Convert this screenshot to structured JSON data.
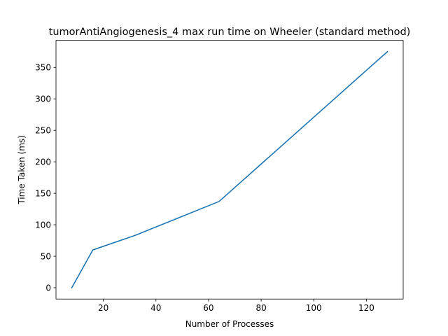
{
  "chart_data": {
    "type": "line",
    "title": "tumorAntiAngiogenesis_4 max run time on Wheeler (standard method)",
    "xlabel": "Number of Processes",
    "ylabel": "Time Taken (ms)",
    "xlim": [
      2,
      134
    ],
    "ylim": [
      -18,
      393
    ],
    "xticks": [
      20,
      40,
      60,
      80,
      100,
      120
    ],
    "yticks": [
      0,
      50,
      100,
      150,
      200,
      250,
      300,
      350
    ],
    "grid": false,
    "series": [
      {
        "color": "#1f77b4",
        "x": [
          8,
          16,
          32,
          64,
          128
        ],
        "y": [
          0,
          60,
          83,
          137,
          375
        ]
      }
    ]
  }
}
